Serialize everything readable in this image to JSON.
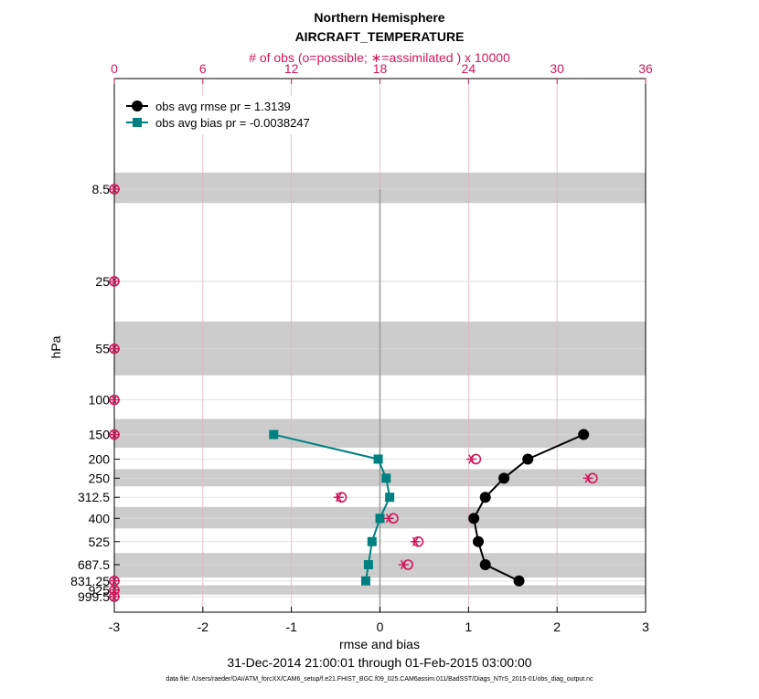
{
  "title_line1": "Northern Hemisphere",
  "title_line2": "AIRCRAFT_TEMPERATURE",
  "top_axis_label": "# of obs (o=possible; ∗=assimilated ) x 10000",
  "xlabel": "rmse and bias",
  "ylabel": "hPa",
  "date_range": "31-Dec-2014 21:00:01 through 01-Feb-2015 03:00:00",
  "data_file": "data file: /Users/raeder/DAI/ATM_forcXX/CAM6_setup/f.e21.FHIST_BGC.f09_025.CAM6assim.011/BadSST/Diags_NTrS_2015-01/obs_diag_output.nc",
  "colors": {
    "rmse": "#000000",
    "bias": "#008080",
    "obs": "#d0175a",
    "band": "#cccccc"
  },
  "chart_data": {
    "type": "line",
    "xlim": [
      -3,
      3
    ],
    "x_ticks": [
      "-3",
      "-2",
      "-1",
      "0",
      "1",
      "2",
      "3"
    ],
    "top_xlim": [
      0,
      36
    ],
    "top_ticks": [
      "0",
      "6",
      "12",
      "18",
      "24",
      "30",
      "36"
    ],
    "y_scale": "log",
    "y_reversed": true,
    "y_ticks": [
      "8.5",
      "25",
      "55",
      "100",
      "150",
      "200",
      "250",
      "312.5",
      "400",
      "525",
      "687.5",
      "831.25",
      "925",
      "999.5"
    ],
    "grid": true,
    "legend_position": "top-left",
    "series": [
      {
        "name": "obs avg rmse pr = 1.3139",
        "style": "black-circle",
        "points": [
          {
            "p": 150,
            "x": 2.3
          },
          {
            "p": 200,
            "x": 1.67
          },
          {
            "p": 250,
            "x": 1.4
          },
          {
            "p": 312.5,
            "x": 1.19
          },
          {
            "p": 400,
            "x": 1.06
          },
          {
            "p": 525,
            "x": 1.11
          },
          {
            "p": 687.5,
            "x": 1.19
          },
          {
            "p": 831.25,
            "x": 1.57
          }
        ]
      },
      {
        "name": "obs avg bias pr = -0.0038247",
        "style": "teal-square",
        "points": [
          {
            "p": 150,
            "x": -1.2
          },
          {
            "p": 200,
            "x": -0.02
          },
          {
            "p": 250,
            "x": 0.07
          },
          {
            "p": 312.5,
            "x": 0.11
          },
          {
            "p": 400,
            "x": 0.0
          },
          {
            "p": 525,
            "x": -0.09
          },
          {
            "p": 687.5,
            "x": -0.13
          },
          {
            "p": 831.25,
            "x": -0.16
          }
        ]
      }
    ],
    "obs_counts": [
      {
        "p": 8.5,
        "possible": 0,
        "assimilated": 0
      },
      {
        "p": 25,
        "possible": 0,
        "assimilated": 0
      },
      {
        "p": 55,
        "possible": 0,
        "assimilated": 0
      },
      {
        "p": 100,
        "possible": 0,
        "assimilated": 0
      },
      {
        "p": 150,
        "possible": 0,
        "assimilated": 0
      },
      {
        "p": 200,
        "possible": 24.5,
        "assimilated": 24.2
      },
      {
        "p": 250,
        "possible": 32.4,
        "assimilated": 32.1
      },
      {
        "p": 312.5,
        "possible": 15.4,
        "assimilated": 15.2
      },
      {
        "p": 400,
        "possible": 18.9,
        "assimilated": 18.6
      },
      {
        "p": 525,
        "possible": 20.6,
        "assimilated": 20.4
      },
      {
        "p": 687.5,
        "possible": 19.9,
        "assimilated": 19.6
      },
      {
        "p": 831.25,
        "possible": 0,
        "assimilated": 0
      },
      {
        "p": 925,
        "possible": 0,
        "assimilated": 0
      },
      {
        "p": 999.5,
        "possible": 0,
        "assimilated": 0
      }
    ],
    "layer_bands": [
      {
        "top": 7,
        "bottom": 10
      },
      {
        "top": 40,
        "bottom": 75
      },
      {
        "top": 125,
        "bottom": 175
      },
      {
        "top": 225,
        "bottom": 275
      },
      {
        "top": 350,
        "bottom": 450
      },
      {
        "top": 600,
        "bottom": 800
      },
      {
        "top": 875,
        "bottom": 975
      }
    ]
  }
}
